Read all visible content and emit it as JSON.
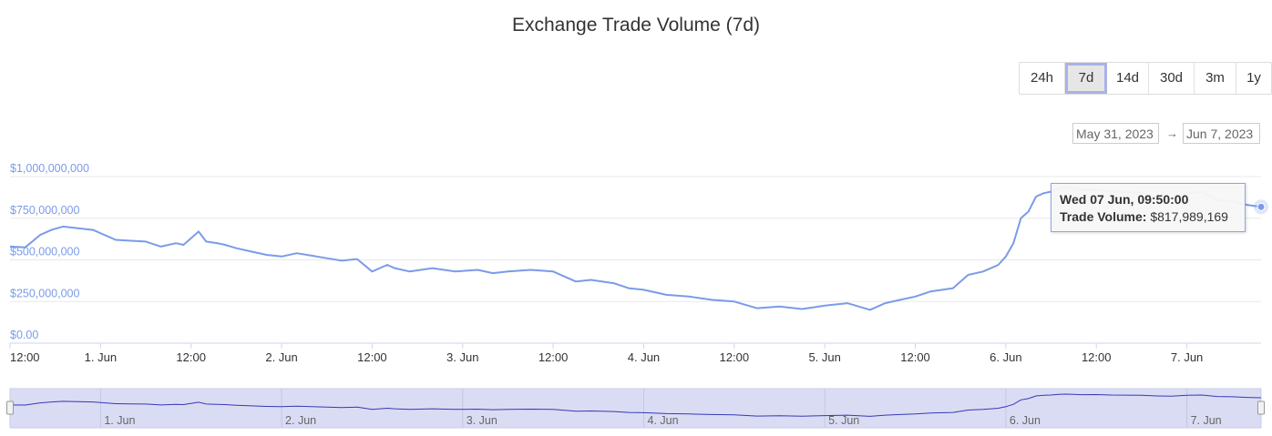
{
  "title": "Exchange Trade Volume (7d)",
  "range_selector": {
    "buttons": [
      "24h",
      "7d",
      "14d",
      "30d",
      "3m",
      "1y"
    ],
    "selected": "7d"
  },
  "date_range": {
    "from": "May 31, 2023",
    "arrow": "→",
    "to": "Jun 7, 2023"
  },
  "tooltip": {
    "date": "Wed 07 Jun, 09:50:00",
    "label": "Trade Volume:",
    "value": "$817,989,169"
  },
  "colors": {
    "line": "#7b9be8",
    "navigator_fill": "#dadcf4",
    "navigator_line": "#3838b4",
    "grid": "#e8e8e8"
  },
  "chart_data": {
    "type": "line",
    "title": "Exchange Trade Volume (7d)",
    "xlabel": "",
    "ylabel": "",
    "ylim": [
      0,
      1000000000
    ],
    "y_tick_labels": [
      "$0.00",
      "$250,000,000",
      "$500,000,000",
      "$750,000,000",
      "$1,000,000,000"
    ],
    "x_tick_labels": [
      "12:00",
      "1. Jun",
      "12:00",
      "2. Jun",
      "12:00",
      "3. Jun",
      "12:00",
      "4. Jun",
      "12:00",
      "5. Jun",
      "12:00",
      "6. Jun",
      "12:00",
      "7. Jun"
    ],
    "x_range": [
      "2023-05-31T12:00",
      "2023-06-07T09:50"
    ],
    "navigator_labels": [
      "1. Jun",
      "2. Jun",
      "3. Jun",
      "4. Jun",
      "5. Jun",
      "6. Jun",
      "7. Jun"
    ],
    "grid": true,
    "series": [
      {
        "x": [
          "2023-05-31T12:00",
          "2023-05-31T14:00",
          "2023-05-31T16:00",
          "2023-05-31T17:30",
          "2023-05-31T19:00",
          "2023-05-31T21:00",
          "2023-05-31T23:00",
          "2023-06-01T02:00",
          "2023-06-01T04:00",
          "2023-06-01T06:00",
          "2023-06-01T08:00",
          "2023-06-01T10:00",
          "2023-06-01T11:00",
          "2023-06-01T13:00",
          "2023-06-01T14:00",
          "2023-06-01T15:30",
          "2023-06-01T16:30",
          "2023-06-01T18:00",
          "2023-06-01T20:00",
          "2023-06-01T22:00",
          "2023-06-02T00:00",
          "2023-06-02T02:00",
          "2023-06-02T04:00",
          "2023-06-02T06:00",
          "2023-06-02T08:00",
          "2023-06-02T10:00",
          "2023-06-02T12:00",
          "2023-06-02T14:00",
          "2023-06-02T15:00",
          "2023-06-02T17:00",
          "2023-06-02T20:00",
          "2023-06-02T23:00",
          "2023-06-03T02:00",
          "2023-06-03T04:00",
          "2023-06-03T06:00",
          "2023-06-03T09:00",
          "2023-06-03T12:00",
          "2023-06-03T15:00",
          "2023-06-03T17:00",
          "2023-06-03T20:00",
          "2023-06-03T22:00",
          "2023-06-04T00:00",
          "2023-06-04T03:00",
          "2023-06-04T06:00",
          "2023-06-04T09:00",
          "2023-06-04T12:00",
          "2023-06-04T15:00",
          "2023-06-04T18:00",
          "2023-06-04T21:00",
          "2023-06-05T00:00",
          "2023-06-05T03:00",
          "2023-06-05T06:00",
          "2023-06-05T08:00",
          "2023-06-05T10:00",
          "2023-06-05T12:00",
          "2023-06-05T14:00",
          "2023-06-05T17:00",
          "2023-06-05T19:00",
          "2023-06-05T21:00",
          "2023-06-05T23:00",
          "2023-06-06T00:00",
          "2023-06-06T01:00",
          "2023-06-06T02:00",
          "2023-06-06T03:00",
          "2023-06-06T04:00",
          "2023-06-06T05:00",
          "2023-06-06T06:00",
          "2023-06-06T07:00",
          "2023-06-06T08:00",
          "2023-06-06T09:00",
          "2023-06-06T10:00",
          "2023-06-06T12:00",
          "2023-06-06T14:00",
          "2023-06-06T16:00",
          "2023-06-06T18:00",
          "2023-06-06T20:00",
          "2023-06-06T22:00",
          "2023-06-07T00:00",
          "2023-06-07T02:00",
          "2023-06-07T04:00",
          "2023-06-07T06:00",
          "2023-06-07T08:00",
          "2023-06-07T09:50"
        ],
        "y": [
          580000000,
          575000000,
          650000000,
          680000000,
          700000000,
          690000000,
          680000000,
          620000000,
          615000000,
          610000000,
          580000000,
          600000000,
          590000000,
          670000000,
          610000000,
          600000000,
          590000000,
          570000000,
          550000000,
          530000000,
          520000000,
          540000000,
          525000000,
          510000000,
          495000000,
          505000000,
          430000000,
          470000000,
          450000000,
          430000000,
          450000000,
          430000000,
          440000000,
          420000000,
          430000000,
          440000000,
          430000000,
          370000000,
          380000000,
          360000000,
          330000000,
          320000000,
          290000000,
          280000000,
          260000000,
          250000000,
          210000000,
          220000000,
          205000000,
          225000000,
          240000000,
          200000000,
          240000000,
          260000000,
          280000000,
          310000000,
          330000000,
          410000000,
          430000000,
          470000000,
          520000000,
          600000000,
          750000000,
          790000000,
          880000000,
          900000000,
          910000000,
          930000000,
          940000000,
          930000000,
          920000000,
          925000000,
          910000000,
          905000000,
          900000000,
          880000000,
          870000000,
          900000000,
          910000000,
          860000000,
          850000000,
          830000000,
          817989169
        ]
      }
    ]
  }
}
